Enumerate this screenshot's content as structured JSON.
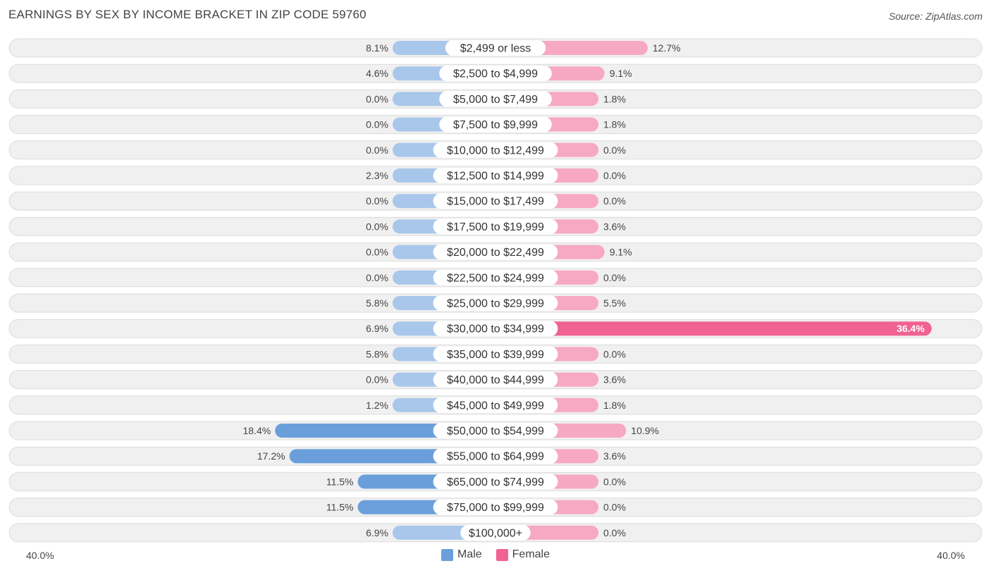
{
  "title": "EARNINGS BY SEX BY INCOME BRACKET IN ZIP CODE 59760",
  "source": "Source: ZipAtlas.com",
  "colors": {
    "male": "#6a9fdc",
    "male_light": "#a9c7ea",
    "female": "#f06292",
    "female_light": "#f7a8c2",
    "row_bg": "#f0f0f0",
    "row_border": "#dcdcdc"
  },
  "axis": {
    "left_label": "40.0%",
    "right_label": "40.0%"
  },
  "legend": {
    "male": "Male",
    "female": "Female"
  },
  "chart_data": {
    "type": "bar",
    "orientation": "horizontal-diverging",
    "title": "EARNINGS BY SEX BY INCOME BRACKET IN ZIP CODE 59760",
    "xlim": [
      -40,
      40
    ],
    "categories": [
      "$2,499 or less",
      "$2,500 to $4,999",
      "$5,000 to $7,499",
      "$7,500 to $9,999",
      "$10,000 to $12,499",
      "$12,500 to $14,999",
      "$15,000 to $17,499",
      "$17,500 to $19,999",
      "$20,000 to $22,499",
      "$22,500 to $24,999",
      "$25,000 to $29,999",
      "$30,000 to $34,999",
      "$35,000 to $39,999",
      "$40,000 to $44,999",
      "$45,000 to $49,999",
      "$50,000 to $54,999",
      "$55,000 to $64,999",
      "$65,000 to $74,999",
      "$75,000 to $99,999",
      "$100,000+"
    ],
    "series": [
      {
        "name": "Male",
        "values": [
          8.1,
          4.6,
          0.0,
          0.0,
          0.0,
          2.3,
          0.0,
          0.0,
          0.0,
          0.0,
          5.8,
          6.9,
          5.8,
          0.0,
          1.2,
          18.4,
          17.2,
          11.5,
          11.5,
          6.9
        ],
        "labels": [
          "8.1%",
          "4.6%",
          "0.0%",
          "0.0%",
          "0.0%",
          "2.3%",
          "0.0%",
          "0.0%",
          "0.0%",
          "0.0%",
          "5.8%",
          "6.9%",
          "5.8%",
          "0.0%",
          "1.2%",
          "18.4%",
          "17.2%",
          "11.5%",
          "11.5%",
          "6.9%"
        ]
      },
      {
        "name": "Female",
        "values": [
          12.7,
          9.1,
          1.8,
          1.8,
          0.0,
          0.0,
          0.0,
          3.6,
          9.1,
          0.0,
          5.5,
          36.4,
          0.0,
          3.6,
          1.8,
          10.9,
          3.6,
          0.0,
          0.0,
          0.0
        ],
        "labels": [
          "12.7%",
          "9.1%",
          "1.8%",
          "1.8%",
          "0.0%",
          "0.0%",
          "0.0%",
          "3.6%",
          "9.1%",
          "0.0%",
          "5.5%",
          "36.4%",
          "0.0%",
          "3.6%",
          "1.8%",
          "10.9%",
          "3.6%",
          "0.0%",
          "0.0%",
          "0.0%"
        ]
      }
    ]
  }
}
